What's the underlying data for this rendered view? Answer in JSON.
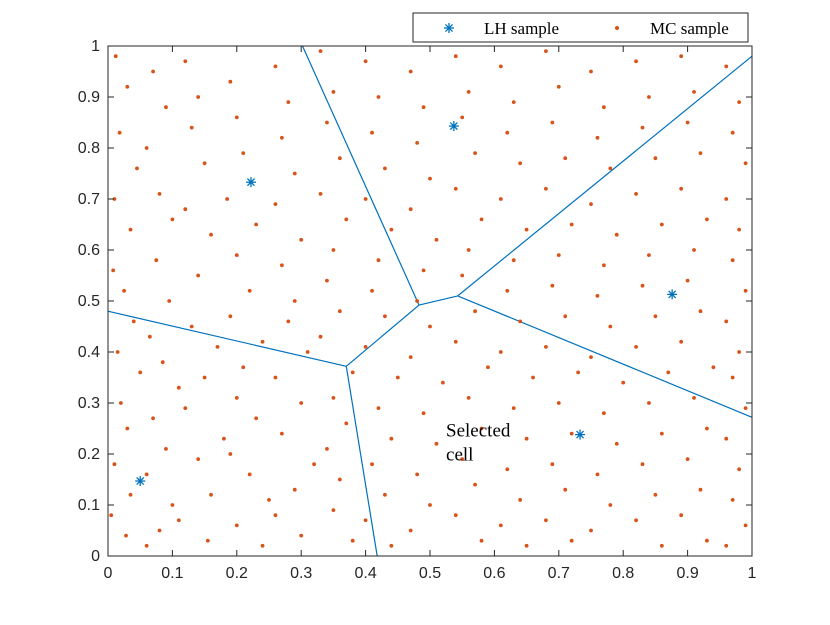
{
  "chart_data": {
    "type": "scatter",
    "title": "",
    "xlabel": "",
    "ylabel": "",
    "xlim": [
      0,
      1
    ],
    "ylim": [
      0,
      1
    ],
    "xticks": [
      "0",
      "0.1",
      "0.2",
      "0.3",
      "0.4",
      "0.5",
      "0.6",
      "0.7",
      "0.8",
      "0.9",
      "1"
    ],
    "yticks": [
      "0",
      "0.1",
      "0.2",
      "0.3",
      "0.4",
      "0.5",
      "0.6",
      "0.7",
      "0.8",
      "0.9",
      "1"
    ],
    "grid": false,
    "legend_placement": "top-right",
    "colors": {
      "lh": "#0072BD",
      "mc": "#D95319",
      "axes": "#262626"
    },
    "series": [
      {
        "name": "LH sample",
        "marker": "asterisk",
        "points": [
          [
            0.05,
            0.147
          ],
          [
            0.222,
            0.733
          ],
          [
            0.537,
            0.843
          ],
          [
            0.733,
            0.238
          ],
          [
            0.876,
            0.513
          ]
        ]
      },
      {
        "name": "MC sample",
        "marker": "dot",
        "points": [
          [
            0.012,
            0.98
          ],
          [
            0.03,
            0.92
          ],
          [
            0.018,
            0.83
          ],
          [
            0.045,
            0.76
          ],
          [
            0.01,
            0.7
          ],
          [
            0.035,
            0.64
          ],
          [
            0.008,
            0.56
          ],
          [
            0.025,
            0.52
          ],
          [
            0.04,
            0.46
          ],
          [
            0.015,
            0.4
          ],
          [
            0.05,
            0.36
          ],
          [
            0.02,
            0.3
          ],
          [
            0.03,
            0.25
          ],
          [
            0.01,
            0.18
          ],
          [
            0.035,
            0.12
          ],
          [
            0.005,
            0.08
          ],
          [
            0.028,
            0.04
          ],
          [
            0.06,
            0.02
          ],
          [
            0.07,
            0.95
          ],
          [
            0.09,
            0.88
          ],
          [
            0.06,
            0.8
          ],
          [
            0.08,
            0.71
          ],
          [
            0.1,
            0.66
          ],
          [
            0.075,
            0.58
          ],
          [
            0.095,
            0.5
          ],
          [
            0.065,
            0.43
          ],
          [
            0.085,
            0.38
          ],
          [
            0.11,
            0.33
          ],
          [
            0.07,
            0.27
          ],
          [
            0.09,
            0.21
          ],
          [
            0.06,
            0.16
          ],
          [
            0.1,
            0.1
          ],
          [
            0.08,
            0.05
          ],
          [
            0.12,
            0.97
          ],
          [
            0.14,
            0.9
          ],
          [
            0.13,
            0.84
          ],
          [
            0.15,
            0.77
          ],
          [
            0.12,
            0.68
          ],
          [
            0.16,
            0.63
          ],
          [
            0.14,
            0.55
          ],
          [
            0.13,
            0.45
          ],
          [
            0.17,
            0.41
          ],
          [
            0.15,
            0.35
          ],
          [
            0.12,
            0.29
          ],
          [
            0.18,
            0.23
          ],
          [
            0.14,
            0.19
          ],
          [
            0.16,
            0.12
          ],
          [
            0.11,
            0.07
          ],
          [
            0.155,
            0.03
          ],
          [
            0.19,
            0.93
          ],
          [
            0.2,
            0.86
          ],
          [
            0.21,
            0.79
          ],
          [
            0.185,
            0.7
          ],
          [
            0.23,
            0.65
          ],
          [
            0.2,
            0.59
          ],
          [
            0.22,
            0.52
          ],
          [
            0.19,
            0.47
          ],
          [
            0.24,
            0.42
          ],
          [
            0.21,
            0.37
          ],
          [
            0.2,
            0.31
          ],
          [
            0.23,
            0.27
          ],
          [
            0.19,
            0.2
          ],
          [
            0.22,
            0.16
          ],
          [
            0.25,
            0.11
          ],
          [
            0.2,
            0.06
          ],
          [
            0.24,
            0.02
          ],
          [
            0.26,
            0.96
          ],
          [
            0.28,
            0.89
          ],
          [
            0.27,
            0.82
          ],
          [
            0.29,
            0.75
          ],
          [
            0.26,
            0.69
          ],
          [
            0.3,
            0.62
          ],
          [
            0.27,
            0.57
          ],
          [
            0.29,
            0.5
          ],
          [
            0.28,
            0.46
          ],
          [
            0.31,
            0.4
          ],
          [
            0.26,
            0.35
          ],
          [
            0.3,
            0.3
          ],
          [
            0.27,
            0.24
          ],
          [
            0.32,
            0.18
          ],
          [
            0.29,
            0.13
          ],
          [
            0.26,
            0.08
          ],
          [
            0.3,
            0.04
          ],
          [
            0.33,
            0.99
          ],
          [
            0.35,
            0.91
          ],
          [
            0.34,
            0.85
          ],
          [
            0.36,
            0.78
          ],
          [
            0.33,
            0.71
          ],
          [
            0.37,
            0.66
          ],
          [
            0.35,
            0.6
          ],
          [
            0.34,
            0.54
          ],
          [
            0.36,
            0.48
          ],
          [
            0.33,
            0.43
          ],
          [
            0.38,
            0.36
          ],
          [
            0.35,
            0.31
          ],
          [
            0.37,
            0.26
          ],
          [
            0.34,
            0.21
          ],
          [
            0.36,
            0.15
          ],
          [
            0.35,
            0.09
          ],
          [
            0.38,
            0.03
          ],
          [
            0.4,
            0.97
          ],
          [
            0.42,
            0.9
          ],
          [
            0.41,
            0.83
          ],
          [
            0.43,
            0.76
          ],
          [
            0.4,
            0.7
          ],
          [
            0.44,
            0.64
          ],
          [
            0.42,
            0.58
          ],
          [
            0.41,
            0.52
          ],
          [
            0.43,
            0.47
          ],
          [
            0.4,
            0.41
          ],
          [
            0.45,
            0.35
          ],
          [
            0.42,
            0.29
          ],
          [
            0.44,
            0.23
          ],
          [
            0.41,
            0.18
          ],
          [
            0.43,
            0.12
          ],
          [
            0.4,
            0.07
          ],
          [
            0.44,
            0.02
          ],
          [
            0.47,
            0.95
          ],
          [
            0.49,
            0.88
          ],
          [
            0.48,
            0.81
          ],
          [
            0.5,
            0.74
          ],
          [
            0.47,
            0.68
          ],
          [
            0.51,
            0.62
          ],
          [
            0.49,
            0.56
          ],
          [
            0.48,
            0.5
          ],
          [
            0.5,
            0.45
          ],
          [
            0.47,
            0.39
          ],
          [
            0.52,
            0.34
          ],
          [
            0.49,
            0.28
          ],
          [
            0.51,
            0.22
          ],
          [
            0.48,
            0.16
          ],
          [
            0.5,
            0.1
          ],
          [
            0.47,
            0.05
          ],
          [
            0.54,
            0.98
          ],
          [
            0.56,
            0.91
          ],
          [
            0.55,
            0.86
          ],
          [
            0.57,
            0.79
          ],
          [
            0.54,
            0.72
          ],
          [
            0.58,
            0.66
          ],
          [
            0.56,
            0.6
          ],
          [
            0.55,
            0.55
          ],
          [
            0.57,
            0.48
          ],
          [
            0.54,
            0.42
          ],
          [
            0.59,
            0.37
          ],
          [
            0.56,
            0.31
          ],
          [
            0.58,
            0.25
          ],
          [
            0.55,
            0.19
          ],
          [
            0.57,
            0.14
          ],
          [
            0.54,
            0.08
          ],
          [
            0.58,
            0.03
          ],
          [
            0.61,
            0.96
          ],
          [
            0.63,
            0.89
          ],
          [
            0.62,
            0.83
          ],
          [
            0.64,
            0.77
          ],
          [
            0.61,
            0.7
          ],
          [
            0.65,
            0.64
          ],
          [
            0.63,
            0.58
          ],
          [
            0.62,
            0.52
          ],
          [
            0.64,
            0.46
          ],
          [
            0.61,
            0.4
          ],
          [
            0.66,
            0.35
          ],
          [
            0.63,
            0.29
          ],
          [
            0.65,
            0.23
          ],
          [
            0.62,
            0.17
          ],
          [
            0.64,
            0.11
          ],
          [
            0.61,
            0.06
          ],
          [
            0.65,
            0.02
          ],
          [
            0.68,
            0.99
          ],
          [
            0.7,
            0.92
          ],
          [
            0.69,
            0.85
          ],
          [
            0.71,
            0.78
          ],
          [
            0.68,
            0.72
          ],
          [
            0.72,
            0.65
          ],
          [
            0.7,
            0.59
          ],
          [
            0.69,
            0.53
          ],
          [
            0.71,
            0.47
          ],
          [
            0.68,
            0.41
          ],
          [
            0.73,
            0.36
          ],
          [
            0.7,
            0.3
          ],
          [
            0.72,
            0.24
          ],
          [
            0.69,
            0.18
          ],
          [
            0.71,
            0.13
          ],
          [
            0.68,
            0.07
          ],
          [
            0.72,
            0.03
          ],
          [
            0.75,
            0.95
          ],
          [
            0.77,
            0.88
          ],
          [
            0.76,
            0.82
          ],
          [
            0.78,
            0.76
          ],
          [
            0.75,
            0.69
          ],
          [
            0.79,
            0.63
          ],
          [
            0.77,
            0.57
          ],
          [
            0.76,
            0.51
          ],
          [
            0.78,
            0.45
          ],
          [
            0.75,
            0.39
          ],
          [
            0.8,
            0.34
          ],
          [
            0.77,
            0.28
          ],
          [
            0.79,
            0.22
          ],
          [
            0.76,
            0.16
          ],
          [
            0.78,
            0.1
          ],
          [
            0.75,
            0.05
          ],
          [
            0.82,
            0.97
          ],
          [
            0.84,
            0.9
          ],
          [
            0.83,
            0.84
          ],
          [
            0.85,
            0.78
          ],
          [
            0.82,
            0.71
          ],
          [
            0.86,
            0.65
          ],
          [
            0.84,
            0.59
          ],
          [
            0.83,
            0.53
          ],
          [
            0.85,
            0.47
          ],
          [
            0.82,
            0.41
          ],
          [
            0.87,
            0.36
          ],
          [
            0.84,
            0.3
          ],
          [
            0.86,
            0.24
          ],
          [
            0.83,
            0.18
          ],
          [
            0.85,
            0.12
          ],
          [
            0.82,
            0.07
          ],
          [
            0.86,
            0.02
          ],
          [
            0.89,
            0.98
          ],
          [
            0.91,
            0.91
          ],
          [
            0.9,
            0.85
          ],
          [
            0.92,
            0.79
          ],
          [
            0.89,
            0.72
          ],
          [
            0.93,
            0.66
          ],
          [
            0.91,
            0.6
          ],
          [
            0.9,
            0.54
          ],
          [
            0.92,
            0.48
          ],
          [
            0.89,
            0.42
          ],
          [
            0.94,
            0.37
          ],
          [
            0.91,
            0.31
          ],
          [
            0.93,
            0.25
          ],
          [
            0.9,
            0.19
          ],
          [
            0.92,
            0.13
          ],
          [
            0.89,
            0.08
          ],
          [
            0.93,
            0.03
          ],
          [
            0.96,
            0.96
          ],
          [
            0.98,
            0.89
          ],
          [
            0.97,
            0.83
          ],
          [
            0.99,
            0.77
          ],
          [
            0.96,
            0.7
          ],
          [
            0.98,
            0.64
          ],
          [
            0.97,
            0.58
          ],
          [
            0.99,
            0.52
          ],
          [
            0.96,
            0.46
          ],
          [
            0.98,
            0.4
          ],
          [
            0.97,
            0.35
          ],
          [
            0.99,
            0.29
          ],
          [
            0.96,
            0.23
          ],
          [
            0.98,
            0.17
          ],
          [
            0.97,
            0.11
          ],
          [
            0.99,
            0.06
          ],
          [
            0.96,
            0.02
          ]
        ]
      }
    ],
    "voronoi_edges": [
      [
        [
          0.302,
          1.0
        ],
        [
          0.483,
          0.492
        ]
      ],
      [
        [
          0.483,
          0.492
        ],
        [
          0.37,
          0.372
        ]
      ],
      [
        [
          0.483,
          0.492
        ],
        [
          0.543,
          0.51
        ]
      ],
      [
        [
          0.37,
          0.372
        ],
        [
          0.0,
          0.48
        ]
      ],
      [
        [
          0.37,
          0.372
        ],
        [
          0.418,
          0.0
        ]
      ],
      [
        [
          0.543,
          0.51
        ],
        [
          1.0,
          0.98
        ]
      ],
      [
        [
          0.543,
          0.51
        ],
        [
          1.0,
          0.272
        ]
      ]
    ],
    "annotations": [
      {
        "lines": [
          "Selected",
          "cell"
        ],
        "at": [
          0.528,
          0.238
        ]
      }
    ]
  }
}
